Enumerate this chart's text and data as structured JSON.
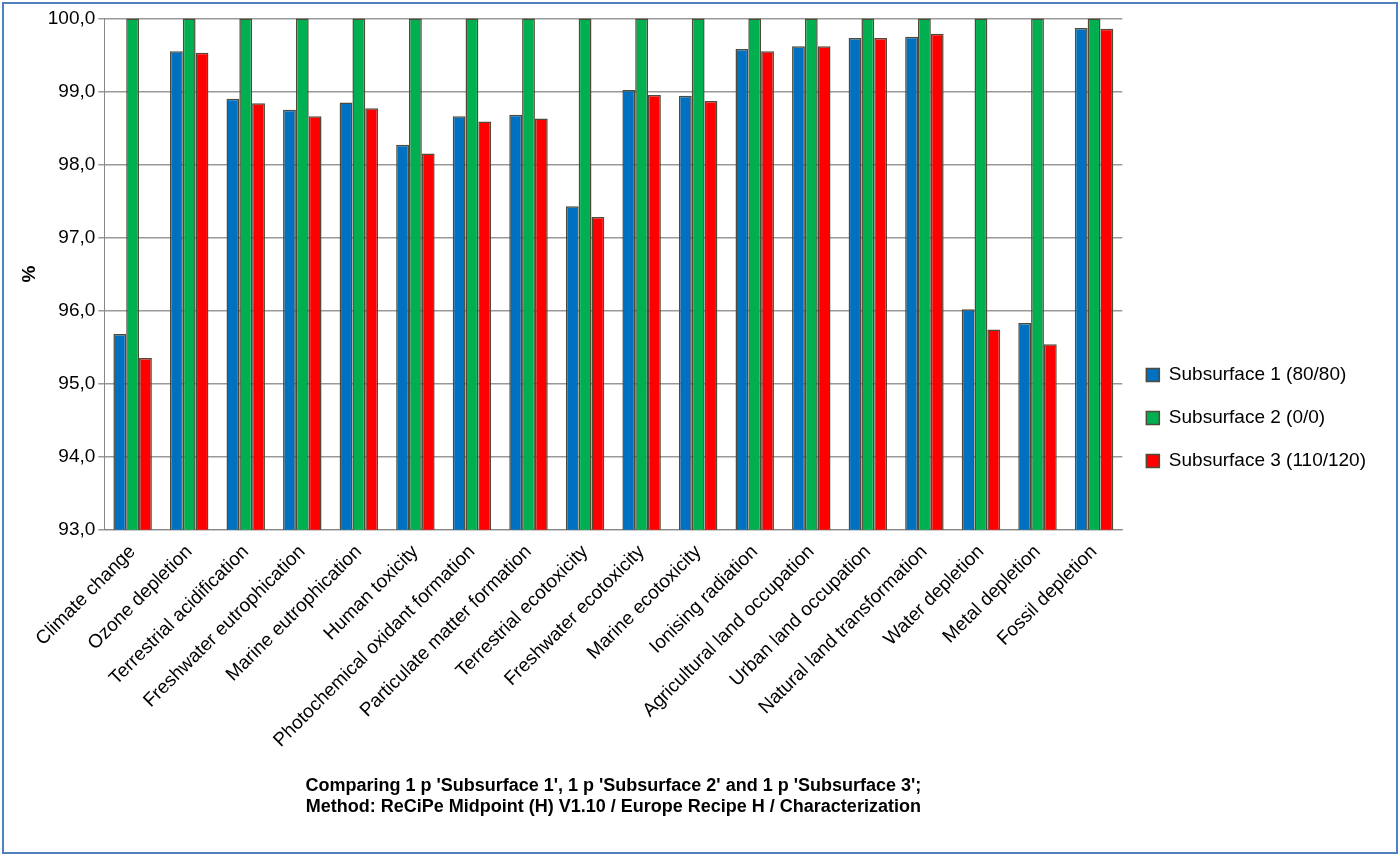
{
  "chart_data": {
    "type": "bar",
    "categories": [
      "Climate change",
      "Ozone depletion",
      "Terrestrial acidification",
      "Freshwater eutrophication",
      "Marine eutrophication",
      "Human toxicity",
      "Photochemical oxidant formation",
      "Particulate matter formation",
      "Terrestrial ecotoxicity",
      "Freshwater ecotoxicity",
      "Marine ecotoxicity",
      "Ionising radiation",
      "Agricultural land occupation",
      "Urban land occupation",
      "Natural land transformation",
      "Water depletion",
      "Metal depletion",
      "Fossil depletion"
    ],
    "series": [
      {
        "name": "Subsurface 1 (80/80)",
        "color": "#0070c0",
        "values": [
          95.68,
          99.55,
          98.9,
          98.75,
          98.85,
          98.27,
          98.66,
          98.68,
          97.43,
          99.02,
          98.94,
          99.58,
          99.62,
          99.73,
          99.75,
          96.02,
          95.83,
          99.87
        ]
      },
      {
        "name": "Subsurface 2 (0/0)",
        "color": "#00b050",
        "values": [
          100,
          100,
          100,
          100,
          100,
          100,
          100,
          100,
          100,
          100,
          100,
          100,
          100,
          100,
          100,
          100,
          100,
          100
        ]
      },
      {
        "name": "Subsurface 3 (110/120)",
        "color": "#ff0000",
        "values": [
          95.35,
          99.53,
          98.84,
          98.66,
          98.77,
          98.15,
          98.59,
          98.63,
          97.28,
          98.95,
          98.87,
          99.55,
          99.62,
          99.73,
          99.79,
          95.74,
          95.54,
          99.86
        ]
      }
    ],
    "ylabel": "%",
    "xlabel": "Comparing 1 p 'Subsurface 1', 1 p 'Subsurface 2' and 1 p 'Subsurface 3';\nMethod: ReCiPe Midpoint (H) V1.10 / Europe Recipe H / Characterization",
    "ylim": [
      93,
      100
    ],
    "yticks": [
      {
        "value": 93,
        "label": "93,0"
      },
      {
        "value": 94,
        "label": "94,0"
      },
      {
        "value": 95,
        "label": "95,0"
      },
      {
        "value": 96,
        "label": "96,0"
      },
      {
        "value": 97,
        "label": "97,0"
      },
      {
        "value": 98,
        "label": "98,0"
      },
      {
        "value": 99,
        "label": "99,0"
      },
      {
        "value": 100,
        "label": "100,0"
      }
    ],
    "grid": "y",
    "legend": "right"
  }
}
